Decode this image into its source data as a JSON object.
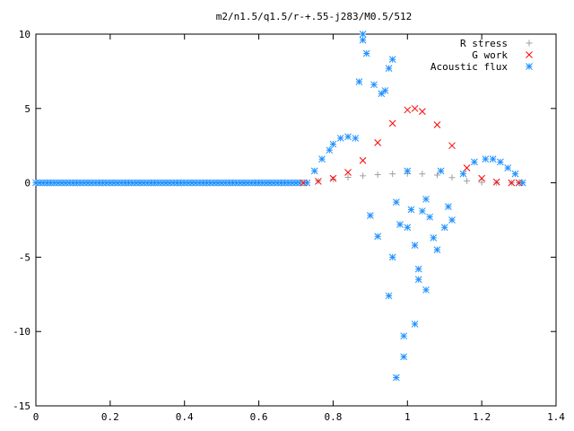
{
  "chart_data": {
    "type": "scatter",
    "title": "m2/n1.5/q1.5/r-+.55-j283/M0.5/512",
    "xlabel": "",
    "ylabel": "",
    "xlim": [
      0,
      1.4
    ],
    "ylim": [
      -15,
      10
    ],
    "x_ticks": [
      "0",
      "0.2",
      "0.4",
      "0.6",
      "0.8",
      "1",
      "1.2",
      "1.4"
    ],
    "y_ticks": [
      "10",
      "5",
      "0",
      "-5",
      "-10",
      "-15"
    ],
    "grid": false,
    "legend_position": "top-right",
    "series": [
      {
        "name": "R stress",
        "marker": "plus",
        "color": "#a0a0a0",
        "x": [
          0.72,
          0.76,
          0.8,
          0.84,
          0.88,
          0.92,
          0.96,
          1.0,
          1.04,
          1.08,
          1.12,
          1.16,
          1.2,
          1.24,
          1.28,
          1.3
        ],
        "y": [
          0.0,
          0.12,
          0.25,
          0.37,
          0.47,
          0.55,
          0.6,
          0.62,
          0.6,
          0.52,
          0.35,
          0.12,
          0.03,
          0.01,
          0.0,
          0.0
        ]
      },
      {
        "name": "G work",
        "marker": "cross",
        "color": "#ff0000",
        "x": [
          0.72,
          0.76,
          0.8,
          0.84,
          0.88,
          0.92,
          0.96,
          1.0,
          1.02,
          1.04,
          1.08,
          1.12,
          1.16,
          1.2,
          1.24,
          1.28,
          1.3
        ],
        "y": [
          0.0,
          0.1,
          0.3,
          0.7,
          1.5,
          2.7,
          4.0,
          4.9,
          5.0,
          4.8,
          3.9,
          2.5,
          1.0,
          0.3,
          0.05,
          0.0,
          0.0
        ]
      },
      {
        "name": "Acoustic flux",
        "marker": "star",
        "color": "#1e90ff",
        "x": [
          0.73,
          0.75,
          0.77,
          0.79,
          0.8,
          0.82,
          0.84,
          0.86,
          0.88,
          0.88,
          0.87,
          0.89,
          0.91,
          0.9,
          0.93,
          0.94,
          0.92,
          0.95,
          0.96,
          0.97,
          0.98,
          0.96,
          0.95,
          1.0,
          1.01,
          1.02,
          1.03,
          1.05,
          1.02,
          0.99,
          1.06,
          1.07,
          1.08,
          1.1,
          1.12,
          1.09,
          1.04,
          1.11,
          1.15,
          1.18,
          1.21,
          1.23,
          1.25,
          1.27,
          1.29,
          1.31,
          0.97,
          1.0,
          1.03,
          1.05,
          0.99
        ],
        "y": [
          0.0,
          0.8,
          1.6,
          2.2,
          2.6,
          3.0,
          3.1,
          3.0,
          10.0,
          9.6,
          6.8,
          8.7,
          6.6,
          -2.2,
          6.0,
          6.2,
          -3.6,
          7.7,
          8.3,
          -1.3,
          -2.8,
          -5.0,
          -7.6,
          -3.0,
          -1.8,
          -4.2,
          -6.5,
          -1.1,
          -9.5,
          -11.7,
          -2.3,
          -3.7,
          -4.5,
          -3.0,
          -2.5,
          0.8,
          -1.9,
          -1.6,
          0.6,
          1.4,
          1.6,
          1.6,
          1.4,
          1.0,
          0.6,
          0.0,
          -13.1,
          0.8,
          -5.8,
          -7.2,
          -10.3
        ]
      }
    ]
  }
}
